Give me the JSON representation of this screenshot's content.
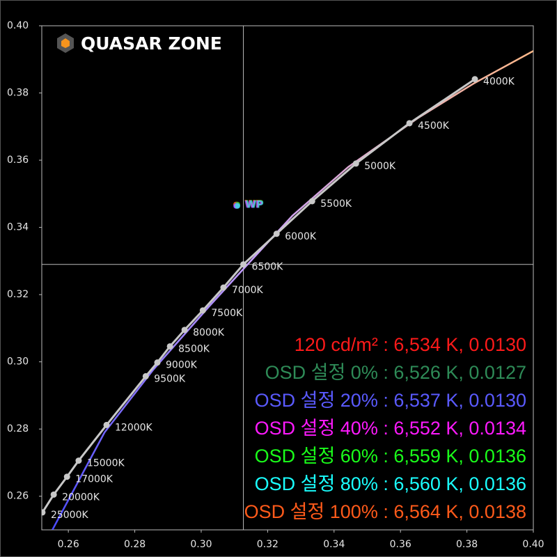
{
  "chart_data": {
    "type": "line",
    "logo": "QUASAR ZONE",
    "xlim": [
      0.252,
      0.4
    ],
    "ylim": [
      0.25,
      0.4
    ],
    "xticks": [
      0.26,
      0.28,
      {
        "value": 0.3,
        "label": "0.30"
      },
      0.32,
      0.34,
      0.36,
      0.38,
      {
        "value": 0.4,
        "label": "0.40"
      }
    ],
    "yticks": [
      0.26,
      0.28,
      {
        "value": 0.3,
        "label": "0.30"
      },
      0.32,
      0.34,
      0.36,
      0.38,
      {
        "value": 0.4,
        "label": "0.40"
      }
    ],
    "reference_lines": {
      "x": 0.3127,
      "y": 0.329,
      "color": "#bbbbbb"
    },
    "locus": {
      "color": "#c8c8c8",
      "labels": [
        "25000K",
        "20000K",
        "17000K",
        "15000K",
        "12000K",
        "9500K",
        "9000K",
        "8500K",
        "8000K",
        "7500K",
        "7000K",
        "6500K",
        "6000K",
        "5500K",
        "5000K",
        "4500K",
        "4000K"
      ],
      "x": [
        0.2522,
        0.2556,
        0.2596,
        0.2631,
        0.2715,
        0.2833,
        0.2868,
        0.2906,
        0.295,
        0.3005,
        0.3067,
        0.3127,
        0.3227,
        0.3334,
        0.3466,
        0.3627,
        0.3824
      ],
      "y": [
        0.2552,
        0.2605,
        0.2658,
        0.2706,
        0.2812,
        0.2957,
        0.2998,
        0.3046,
        0.3095,
        0.3153,
        0.3221,
        0.329,
        0.3381,
        0.3478,
        0.359,
        0.371,
        0.3841
      ]
    },
    "measured": {
      "colors": [
        "#4a4aff",
        "#c8a0ff",
        "#ffb888"
      ],
      "x": [
        0.2552,
        0.2709,
        0.2856,
        0.3023,
        0.3149,
        0.3275,
        0.3443,
        0.3652,
        0.382,
        0.4
      ],
      "y": [
        0.25,
        0.279,
        0.2977,
        0.3164,
        0.33,
        0.3435,
        0.358,
        0.3725,
        0.3828,
        0.3925
      ]
    },
    "white_point": {
      "label": "WP",
      "x": 0.3107,
      "y": 0.3466,
      "colors": [
        "#ff8c00",
        "#ff3030",
        "#30c030",
        "#5050ff",
        "#ff40ff",
        "#30e0e0"
      ]
    },
    "annotations": [
      {
        "text": "120 cd/m² : 6,534 K, 0.0130",
        "color": "#ff1a1a"
      },
      {
        "text": "OSD 설정 0% : 6,526 K, 0.0127",
        "color": "#2e8b57"
      },
      {
        "text": "OSD 설정 20% : 6,537 K, 0.0130",
        "color": "#5a5aff"
      },
      {
        "text": "OSD 설정 40% : 6,552 K, 0.0134",
        "color": "#ff1aff"
      },
      {
        "text": "OSD 설정 60% : 6,559 K, 0.0136",
        "color": "#1aff1a"
      },
      {
        "text": "OSD 설정 80% : 6,560 K, 0.0136",
        "color": "#1affff"
      },
      {
        "text": "OSD 설정 100% : 6,564 K, 0.0138",
        "color": "#ff5a1a"
      }
    ]
  }
}
